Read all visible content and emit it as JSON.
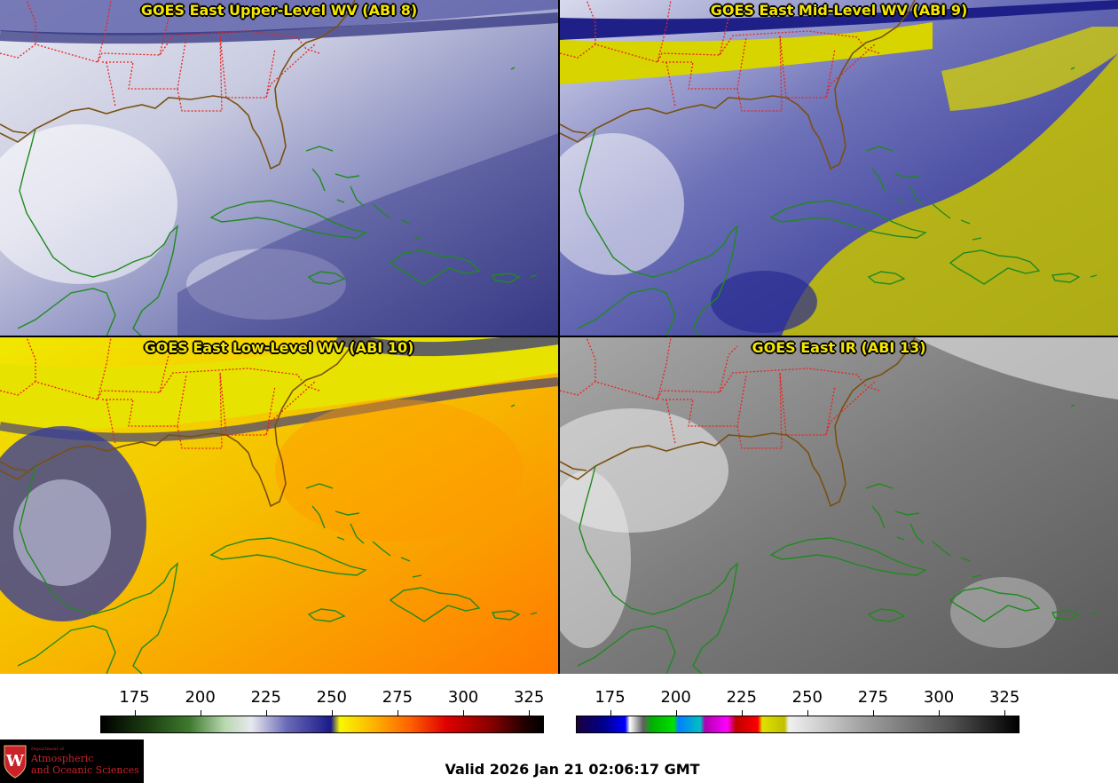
{
  "panels": [
    {
      "id": "abi8",
      "title": "GOES East Upper-Level WV (ABI 8)"
    },
    {
      "id": "abi9",
      "title": "GOES East Mid-Level WV (ABI 9)"
    },
    {
      "id": "abi10",
      "title": "GOES East Low-Level WV (ABI 10)"
    },
    {
      "id": "abi13",
      "title": "GOES East IR (ABI 13)"
    }
  ],
  "colorbars": {
    "wv": {
      "ticks": [
        "175",
        "200",
        "225",
        "250",
        "275",
        "300",
        "325"
      ]
    },
    "ir": {
      "ticks": [
        "175",
        "200",
        "225",
        "250",
        "275",
        "300",
        "325"
      ]
    }
  },
  "logo": {
    "dept": "Department of",
    "line1": "Atmospheric",
    "line2": "and Oceanic Sciences",
    "seal_letter": "W"
  },
  "valid_time": "Valid 2026 Jan 21 02:06:17 GMT",
  "colors": {
    "state_borders": "#e8231f",
    "coastline": "#1f8a1f",
    "us_coast": "#6b4a12",
    "title_text": "#f5e600"
  }
}
